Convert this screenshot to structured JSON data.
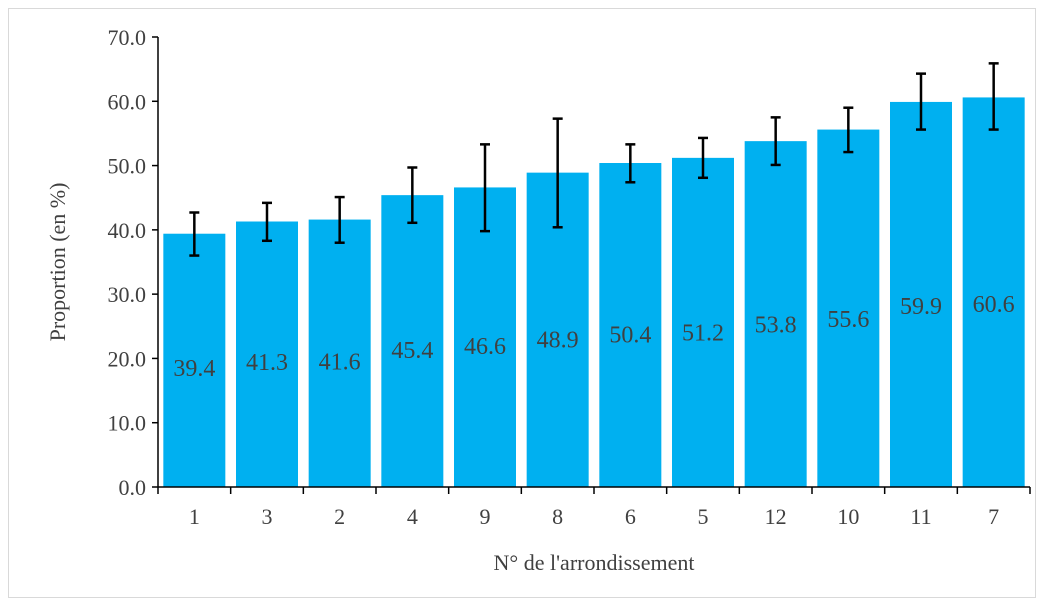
{
  "chart_data": {
    "type": "bar",
    "title": "",
    "xlabel": "N° de l'arrondissement",
    "ylabel": "Proportion (en %)",
    "ylim": [
      0,
      70
    ],
    "yticks": [
      "0.0",
      "10.0",
      "20.0",
      "30.0",
      "40.0",
      "50.0",
      "60.0",
      "70.0"
    ],
    "categories": [
      "1",
      "3",
      "2",
      "4",
      "9",
      "8",
      "6",
      "5",
      "12",
      "10",
      "11",
      "7"
    ],
    "values": [
      39.4,
      41.3,
      41.6,
      45.4,
      46.6,
      48.9,
      50.4,
      51.2,
      53.8,
      55.6,
      59.9,
      60.6
    ],
    "data_labels": [
      "39.4",
      "41.3",
      "41.6",
      "45.4",
      "46.6",
      "48.9",
      "50.4",
      "51.2",
      "53.8",
      "55.6",
      "59.9",
      "60.6"
    ],
    "error_low": [
      36.0,
      38.3,
      38.0,
      41.1,
      39.8,
      40.4,
      47.4,
      48.1,
      50.1,
      52.1,
      55.6,
      55.6
    ],
    "error_high": [
      42.7,
      44.2,
      45.1,
      49.7,
      53.3,
      57.3,
      53.3,
      54.3,
      57.5,
      59.0,
      64.3,
      65.9
    ],
    "bar_color": "#00b0f0",
    "grid": false,
    "legend": "none"
  }
}
